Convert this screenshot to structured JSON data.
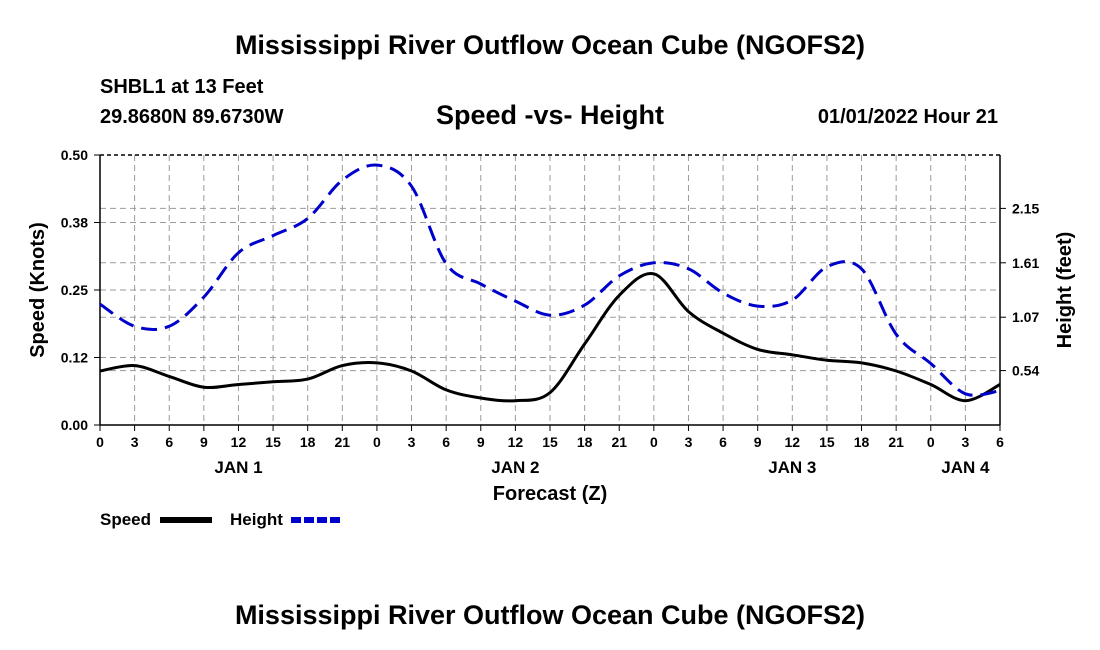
{
  "header": {
    "title": "Mississippi River Outflow Ocean Cube (NGOFS2)",
    "station": "SHBL1 at 13 Feet",
    "latlon": "29.8680N  89.6730W",
    "subtitle": "Speed -vs- Height",
    "datetime": "01/01/2022 Hour 21"
  },
  "footer": {
    "title": "Mississippi River Outflow Ocean Cube (NGOFS2)"
  },
  "legend": {
    "speed_label": "Speed",
    "height_label": "Height"
  },
  "colors": {
    "speed": "#000000",
    "height": "#0000cc",
    "grid": "#9a9a9a"
  },
  "chart_data": {
    "type": "line",
    "title": "Speed -vs- Height",
    "xlabel": "Forecast (Z)",
    "ylabel": "Speed (Knots)",
    "y2label": "Height (feet)",
    "x_unit": "hours since JAN 1 00Z",
    "xlim": [
      0,
      78
    ],
    "ylim": [
      0,
      0.5
    ],
    "y2lim": [
      0,
      2.68
    ],
    "grid": true,
    "legend_position": "bottom-left",
    "x_ticks": [
      0,
      3,
      6,
      9,
      12,
      15,
      18,
      21,
      24,
      27,
      30,
      33,
      36,
      39,
      42,
      45,
      48,
      51,
      54,
      57,
      60,
      63,
      66,
      69,
      72,
      75,
      78
    ],
    "x_tick_labels": [
      "0",
      "3",
      "6",
      "9",
      "12",
      "15",
      "18",
      "21",
      "0",
      "3",
      "6",
      "9",
      "12",
      "15",
      "18",
      "21",
      "0",
      "3",
      "6",
      "9",
      "12",
      "15",
      "18",
      "21",
      "0",
      "3",
      "6"
    ],
    "date_labels": [
      {
        "x": 12,
        "label": "JAN 1"
      },
      {
        "x": 36,
        "label": "JAN 2"
      },
      {
        "x": 60,
        "label": "JAN 3"
      },
      {
        "x": 75,
        "label": "JAN 4"
      }
    ],
    "y_ticks": [
      0,
      0.125,
      0.25,
      0.375,
      0.5
    ],
    "y_tick_labels": [
      "0.00",
      "0.12",
      "0.25",
      "0.38",
      "0.50"
    ],
    "y2_ticks": [
      0.54,
      1.07,
      1.61,
      2.15
    ],
    "y2_tick_labels": [
      "0.54",
      "1.07",
      "1.61",
      "2.15"
    ],
    "series": [
      {
        "name": "Speed",
        "axis": "left",
        "style": "solid",
        "x": [
          0,
          3,
          6,
          9,
          12,
          15,
          18,
          21,
          24,
          27,
          30,
          33,
          36,
          39,
          42,
          45,
          48,
          51,
          54,
          57,
          60,
          63,
          66,
          69,
          72,
          75,
          78
        ],
        "values": [
          0.1,
          0.11,
          0.09,
          0.07,
          0.075,
          0.08,
          0.085,
          0.11,
          0.115,
          0.1,
          0.065,
          0.05,
          0.045,
          0.06,
          0.15,
          0.24,
          0.28,
          0.21,
          0.17,
          0.14,
          0.13,
          0.12,
          0.115,
          0.1,
          0.075,
          0.045,
          0.075
        ]
      },
      {
        "name": "Height",
        "axis": "right",
        "style": "dashed",
        "x": [
          0,
          3,
          6,
          9,
          12,
          15,
          18,
          21,
          24,
          27,
          30,
          33,
          36,
          39,
          42,
          45,
          48,
          51,
          54,
          57,
          60,
          63,
          66,
          69,
          72,
          75,
          78
        ],
        "values": [
          1.2,
          0.98,
          0.98,
          1.27,
          1.71,
          1.88,
          2.05,
          2.43,
          2.58,
          2.37,
          1.6,
          1.4,
          1.23,
          1.09,
          1.19,
          1.48,
          1.61,
          1.55,
          1.31,
          1.18,
          1.24,
          1.57,
          1.55,
          0.9,
          0.61,
          0.31,
          0.34
        ]
      }
    ]
  }
}
